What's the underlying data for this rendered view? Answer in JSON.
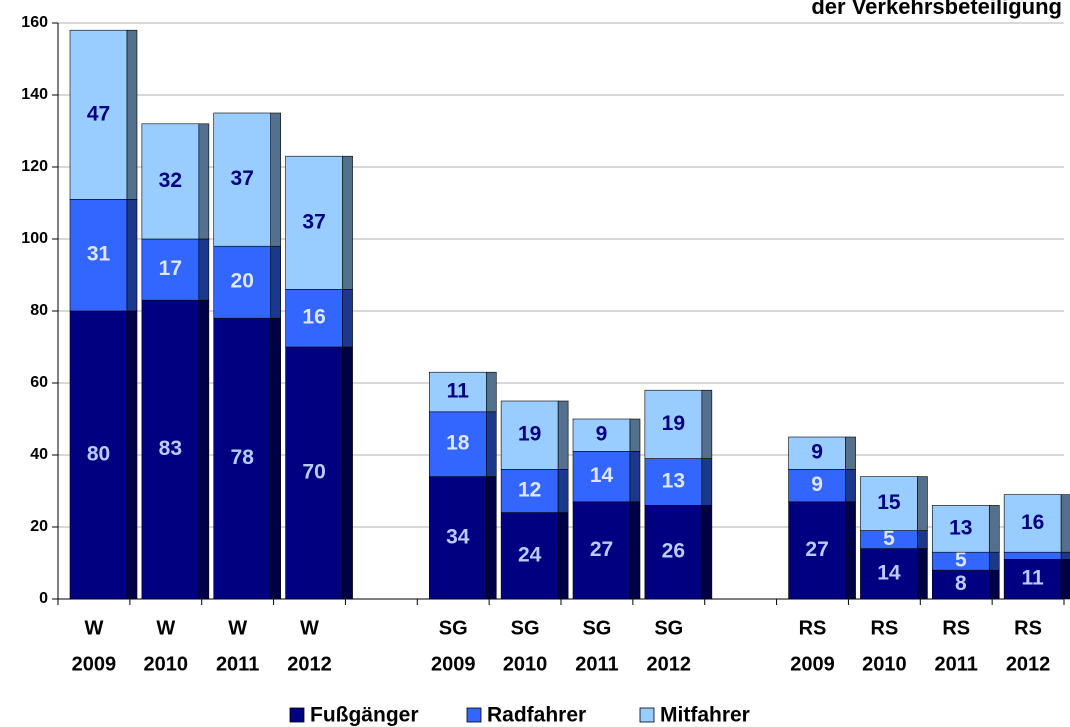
{
  "chart_data": {
    "type": "stacked_bar",
    "title": "der Verkehrsbeteiligung",
    "categories": [
      [
        "W",
        "2009"
      ],
      [
        "W",
        "2010"
      ],
      [
        "W",
        "2011"
      ],
      [
        "W",
        "2012"
      ],
      null,
      [
        "SG",
        "2009"
      ],
      [
        "SG",
        "2010"
      ],
      [
        "SG",
        "2011"
      ],
      [
        "SG",
        "2012"
      ],
      null,
      [
        "RS",
        "2009"
      ],
      [
        "RS",
        "2010"
      ],
      [
        "RS",
        "2011"
      ],
      [
        "RS",
        "2012"
      ]
    ],
    "series": [
      {
        "name": "Fußgänger",
        "color": "#000080",
        "label_color": "#b8ccff",
        "values": [
          80,
          83,
          78,
          70,
          null,
          34,
          24,
          27,
          26,
          null,
          27,
          14,
          8,
          11
        ]
      },
      {
        "name": "Radfahrer",
        "color": "#3366ff",
        "label_color": "#dde6ff",
        "values": [
          31,
          17,
          20,
          16,
          null,
          18,
          12,
          14,
          13,
          null,
          9,
          5,
          5,
          2
        ],
        "value_labels": [
          "31",
          "17",
          "20",
          "16",
          null,
          "18",
          "12",
          "14",
          "13",
          null,
          "9",
          "5",
          "5",
          null
        ]
      },
      {
        "name": "Mitfahrer",
        "color": "#99ccff",
        "label_color": "#000080",
        "values": [
          47,
          32,
          37,
          37,
          null,
          11,
          19,
          9,
          19,
          null,
          9,
          15,
          13,
          16
        ]
      }
    ],
    "ylim": [
      0,
      160
    ],
    "yticks": [
      0,
      20,
      40,
      60,
      80,
      100,
      120,
      140,
      160
    ],
    "grid": true,
    "legend": "bottom"
  }
}
